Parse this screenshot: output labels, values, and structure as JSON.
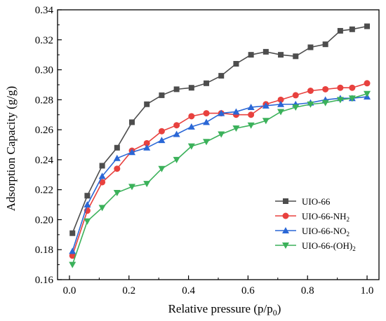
{
  "chart_data": {
    "type": "line",
    "xlabel": "Relative pressure (p/p",
    "xlabel_sub": "0",
    "xlabel_end": ")",
    "ylabel": "Adsorption Capacity (g/g)",
    "xlim": [
      -0.04,
      1.04
    ],
    "ylim": [
      0.16,
      0.34
    ],
    "xticks": [
      "0.0",
      "0.2",
      "0.4",
      "0.6",
      "0.8",
      "1.0"
    ],
    "xtick_values": [
      0.0,
      0.2,
      0.4,
      0.6,
      0.8,
      1.0
    ],
    "yticks": [
      "0.16",
      "0.18",
      "0.20",
      "0.22",
      "0.24",
      "0.26",
      "0.28",
      "0.30",
      "0.32",
      "0.34"
    ],
    "ytick_values": [
      0.16,
      0.18,
      0.2,
      0.22,
      0.24,
      0.26,
      0.28,
      0.3,
      0.32,
      0.34
    ],
    "grid": false,
    "legend_position": "lower-right",
    "series": [
      {
        "name": "UIO-66",
        "name_sub": "",
        "color": "#4d4d4d",
        "marker": "square",
        "x": [
          0.01,
          0.06,
          0.11,
          0.16,
          0.21,
          0.26,
          0.31,
          0.36,
          0.41,
          0.46,
          0.51,
          0.56,
          0.61,
          0.66,
          0.71,
          0.76,
          0.81,
          0.86,
          0.91,
          0.95,
          1.0
        ],
        "y": [
          0.191,
          0.216,
          0.236,
          0.248,
          0.265,
          0.277,
          0.283,
          0.287,
          0.288,
          0.291,
          0.296,
          0.304,
          0.31,
          0.312,
          0.31,
          0.309,
          0.315,
          0.317,
          0.326,
          0.327,
          0.329
        ]
      },
      {
        "name": "UIO-66-NH",
        "name_sub": "2",
        "color": "#e8413e",
        "marker": "circle",
        "x": [
          0.01,
          0.06,
          0.11,
          0.16,
          0.21,
          0.26,
          0.31,
          0.36,
          0.41,
          0.46,
          0.51,
          0.56,
          0.61,
          0.66,
          0.71,
          0.76,
          0.81,
          0.86,
          0.91,
          0.95,
          1.0
        ],
        "y": [
          0.176,
          0.206,
          0.225,
          0.234,
          0.246,
          0.251,
          0.259,
          0.263,
          0.269,
          0.271,
          0.271,
          0.27,
          0.27,
          0.277,
          0.28,
          0.283,
          0.286,
          0.287,
          0.288,
          0.288,
          0.291
        ]
      },
      {
        "name": "UIO-66-NO",
        "name_sub": "2",
        "color": "#2a67d6",
        "marker": "triangle-up",
        "x": [
          0.01,
          0.06,
          0.11,
          0.16,
          0.21,
          0.26,
          0.31,
          0.36,
          0.41,
          0.46,
          0.51,
          0.56,
          0.61,
          0.66,
          0.71,
          0.76,
          0.81,
          0.86,
          0.91,
          0.95,
          1.0
        ],
        "y": [
          0.179,
          0.21,
          0.229,
          0.241,
          0.245,
          0.248,
          0.253,
          0.257,
          0.262,
          0.265,
          0.271,
          0.272,
          0.275,
          0.276,
          0.277,
          0.277,
          0.278,
          0.28,
          0.281,
          0.281,
          0.282
        ]
      },
      {
        "name": "UIO-66-(OH)",
        "name_sub": "2",
        "color": "#3bb15a",
        "marker": "triangle-down",
        "x": [
          0.01,
          0.06,
          0.11,
          0.16,
          0.21,
          0.26,
          0.31,
          0.36,
          0.41,
          0.46,
          0.51,
          0.56,
          0.61,
          0.66,
          0.71,
          0.76,
          0.81,
          0.86,
          0.91,
          0.95,
          1.0
        ],
        "y": [
          0.17,
          0.199,
          0.208,
          0.218,
          0.222,
          0.224,
          0.234,
          0.24,
          0.249,
          0.252,
          0.257,
          0.261,
          0.263,
          0.266,
          0.272,
          0.275,
          0.277,
          0.278,
          0.28,
          0.281,
          0.284
        ]
      }
    ]
  }
}
